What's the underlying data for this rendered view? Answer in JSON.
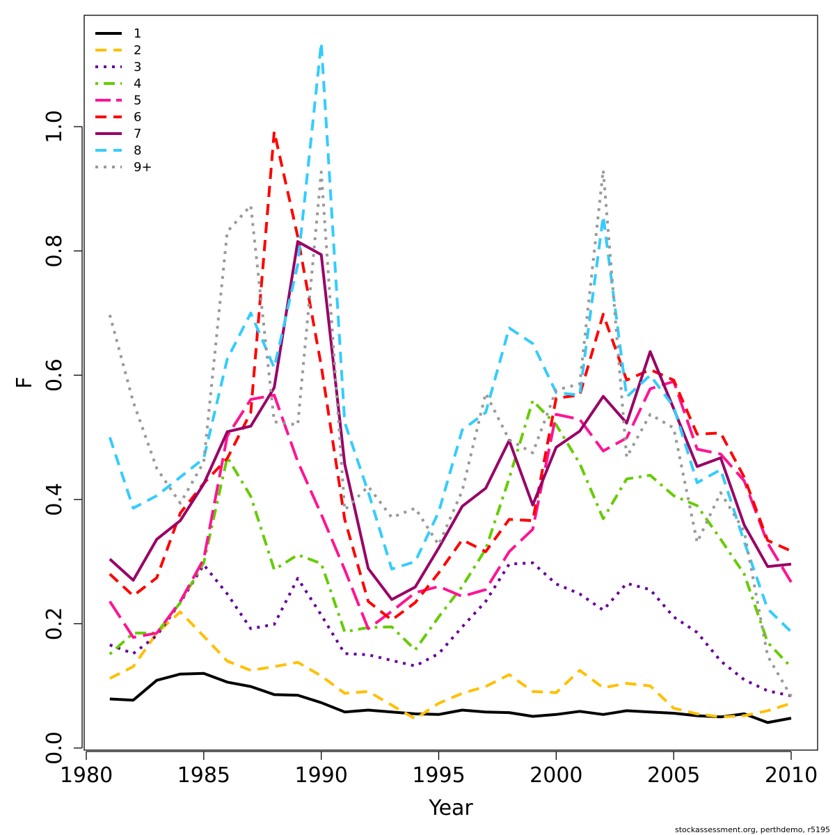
{
  "chart_data": {
    "type": "line",
    "xlabel": "Year",
    "ylabel": "F",
    "xlim": [
      1980,
      2010
    ],
    "ylim": [
      0,
      1.13
    ],
    "x_ticks": [
      1980,
      1985,
      1990,
      1995,
      2000,
      2005,
      2010
    ],
    "y_ticks": [
      "0.0",
      "0.2",
      "0.4",
      "0.6",
      "0.8",
      "1.0"
    ],
    "grid": false,
    "legend_position": "top-left",
    "x": [
      1981,
      1982,
      1983,
      1984,
      1985,
      1986,
      1987,
      1988,
      1989,
      1990,
      1991,
      1992,
      1993,
      1994,
      1995,
      1996,
      1997,
      1998,
      1999,
      2000,
      2001,
      2002,
      2003,
      2004,
      2005,
      2006,
      2007,
      2008,
      2009,
      2010
    ],
    "series": [
      {
        "name": "1",
        "color": "#000000",
        "dash": "solid",
        "values": [
          0.079,
          0.077,
          0.109,
          0.119,
          0.12,
          0.106,
          0.099,
          0.086,
          0.085,
          0.073,
          0.058,
          0.061,
          0.058,
          0.055,
          0.054,
          0.061,
          0.058,
          0.057,
          0.051,
          0.054,
          0.059,
          0.054,
          0.06,
          0.058,
          0.056,
          0.052,
          0.05,
          0.055,
          0.041,
          0.048
        ]
      },
      {
        "name": "2",
        "color": "#FFC000",
        "dash": "dashed",
        "values": [
          0.112,
          0.131,
          0.185,
          0.219,
          0.18,
          0.14,
          0.125,
          0.131,
          0.138,
          0.116,
          0.088,
          0.091,
          0.069,
          0.047,
          0.072,
          0.088,
          0.099,
          0.118,
          0.091,
          0.089,
          0.125,
          0.097,
          0.104,
          0.1,
          0.064,
          0.055,
          0.05,
          0.052,
          0.06,
          0.072
        ]
      },
      {
        "name": "3",
        "color": "#660099",
        "dash": "dotted",
        "values": [
          0.166,
          0.152,
          0.181,
          0.234,
          0.295,
          0.248,
          0.192,
          0.199,
          0.273,
          0.214,
          0.152,
          0.15,
          0.141,
          0.132,
          0.152,
          0.195,
          0.236,
          0.296,
          0.298,
          0.264,
          0.248,
          0.222,
          0.265,
          0.255,
          0.211,
          0.186,
          0.14,
          0.11,
          0.092,
          0.084
        ]
      },
      {
        "name": "4",
        "color": "#66CC00",
        "dash": "dashdot",
        "values": [
          0.151,
          0.185,
          0.185,
          0.234,
          0.298,
          0.468,
          0.405,
          0.287,
          0.311,
          0.297,
          0.187,
          0.194,
          0.195,
          0.158,
          0.211,
          0.26,
          0.32,
          0.434,
          0.559,
          0.52,
          0.458,
          0.369,
          0.433,
          0.439,
          0.406,
          0.39,
          0.336,
          0.28,
          0.17,
          0.13
        ]
      },
      {
        "name": "5",
        "color": "#FF1493",
        "dash": "longdash",
        "values": [
          0.236,
          0.178,
          0.185,
          0.236,
          0.304,
          0.502,
          0.561,
          0.568,
          0.461,
          0.376,
          0.287,
          0.192,
          0.22,
          0.25,
          0.26,
          0.244,
          0.255,
          0.316,
          0.352,
          0.537,
          0.529,
          0.478,
          0.499,
          0.578,
          0.59,
          0.481,
          0.473,
          0.43,
          0.33,
          0.267
        ]
      },
      {
        "name": "6",
        "color": "#FF0000",
        "dash": "dashed",
        "values": [
          0.28,
          0.245,
          0.274,
          0.378,
          0.426,
          0.466,
          0.54,
          0.992,
          0.823,
          0.615,
          0.368,
          0.236,
          0.206,
          0.234,
          0.282,
          0.335,
          0.316,
          0.368,
          0.366,
          0.563,
          0.568,
          0.698,
          0.592,
          0.609,
          0.592,
          0.505,
          0.507,
          0.436,
          0.334,
          0.317
        ]
      },
      {
        "name": "7",
        "color": "#990066",
        "dash": "solid",
        "values": [
          0.304,
          0.27,
          0.336,
          0.366,
          0.425,
          0.509,
          0.518,
          0.58,
          0.815,
          0.794,
          0.457,
          0.289,
          0.239,
          0.259,
          0.322,
          0.389,
          0.418,
          0.495,
          0.391,
          0.484,
          0.51,
          0.566,
          0.523,
          0.638,
          0.546,
          0.453,
          0.467,
          0.359,
          0.292,
          0.296
        ]
      },
      {
        "name": "8",
        "color": "#33CCFF",
        "dash": "dashed",
        "values": [
          0.5,
          0.386,
          0.406,
          0.436,
          0.466,
          0.626,
          0.7,
          0.612,
          0.778,
          1.135,
          0.524,
          0.412,
          0.288,
          0.3,
          0.38,
          0.512,
          0.54,
          0.676,
          0.651,
          0.572,
          0.568,
          0.856,
          0.565,
          0.6,
          0.549,
          0.427,
          0.448,
          0.332,
          0.224,
          0.187
        ]
      },
      {
        "name": "9+",
        "color": "#999999",
        "dash": "dotted",
        "values": [
          0.697,
          0.557,
          0.45,
          0.394,
          0.46,
          0.831,
          0.873,
          0.525,
          0.52,
          0.927,
          0.383,
          0.421,
          0.371,
          0.386,
          0.327,
          0.414,
          0.571,
          0.496,
          0.475,
          0.576,
          0.586,
          0.93,
          0.468,
          0.537,
          0.515,
          0.331,
          0.411,
          0.349,
          0.148,
          0.083
        ]
      }
    ],
    "credit": "stockassessment.org, perthdemo, r5195"
  }
}
